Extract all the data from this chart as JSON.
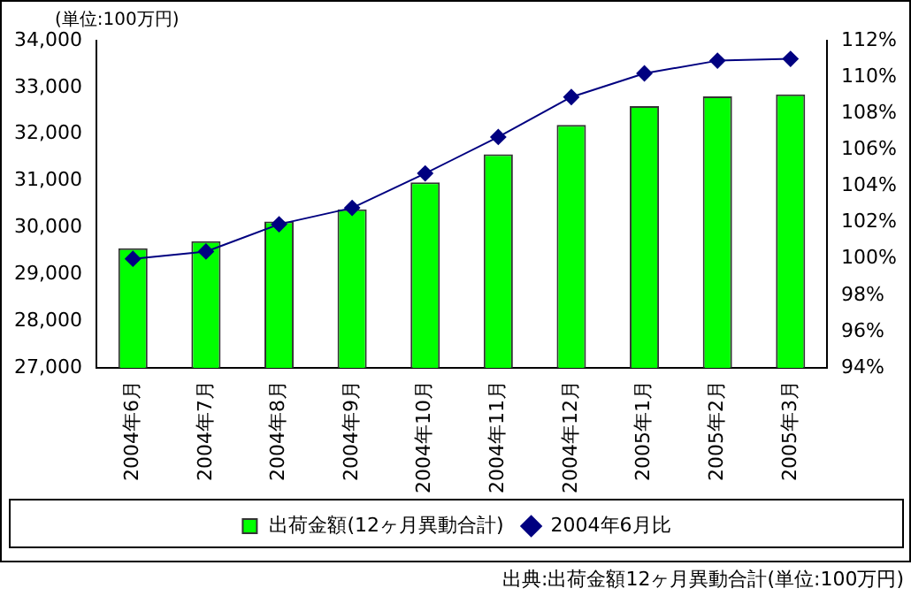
{
  "chart_data": {
    "type": "bar",
    "categories": [
      "2004年6月",
      "2004年7月",
      "2004年8月",
      "2004年9月",
      "2004年10月",
      "2004年11月",
      "2004年12月",
      "2005年1月",
      "2005年2月",
      "2005年3月"
    ],
    "series": [
      {
        "name": "出荷金額(12ヶ月異動合計)",
        "color": "#00ff00",
        "values": [
          29560,
          29710,
          30130,
          30390,
          30970,
          31570,
          32200,
          32600,
          32810,
          32850
        ]
      },
      {
        "name": "2004年6月比",
        "type": "line",
        "axis": "y2",
        "color": "#000080",
        "marker": "diamond",
        "values": [
          100,
          100.4,
          101.9,
          102.8,
          104.7,
          106.7,
          108.9,
          110.2,
          110.9,
          111.0
        ]
      }
    ],
    "ylim": [
      27000,
      34000
    ],
    "yticks": [
      {
        "value": 27000,
        "label": "27,000"
      },
      {
        "value": 28000,
        "label": "28,000"
      },
      {
        "value": 29000,
        "label": "29,000"
      },
      {
        "value": 30000,
        "label": "30,000"
      },
      {
        "value": 31000,
        "label": "31,000"
      },
      {
        "value": 32000,
        "label": "32,000"
      },
      {
        "value": 33000,
        "label": "33,000"
      },
      {
        "value": 34000,
        "label": "34,000"
      }
    ],
    "y2lim": [
      94,
      112
    ],
    "y2ticks": [
      {
        "value": 94,
        "label": "94%"
      },
      {
        "value": 96,
        "label": "96%"
      },
      {
        "value": 98,
        "label": "98%"
      },
      {
        "value": 100,
        "label": "100%"
      },
      {
        "value": 102,
        "label": "102%"
      },
      {
        "value": 104,
        "label": "104%"
      },
      {
        "value": 106,
        "label": "106%"
      },
      {
        "value": 108,
        "label": "108%"
      },
      {
        "value": 110,
        "label": "110%"
      },
      {
        "value": 112,
        "label": "112%"
      }
    ],
    "grid": false,
    "legend": "bottom",
    "annotations": [
      "(単位:100万円)",
      "出典:出荷金額12ヶ月異動合計(単位:100万円)"
    ]
  }
}
